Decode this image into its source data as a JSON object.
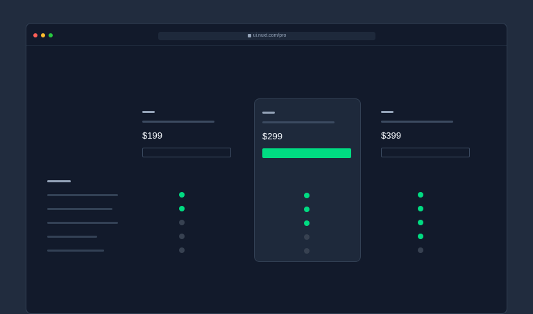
{
  "browser": {
    "url": "ui.nuxt.com/pro",
    "traffic_lights": [
      "#ff5f57",
      "#febc2e",
      "#28c840"
    ]
  },
  "colors": {
    "accent": "#00dc82",
    "muted": "#374151"
  },
  "plans": [
    {
      "price": "$199",
      "highlighted": false,
      "features": [
        true,
        true,
        false,
        false,
        false
      ]
    },
    {
      "price": "$299",
      "highlighted": true,
      "features": [
        true,
        true,
        true,
        false,
        false
      ]
    },
    {
      "price": "$399",
      "highlighted": false,
      "features": [
        true,
        true,
        true,
        true,
        false
      ]
    }
  ]
}
